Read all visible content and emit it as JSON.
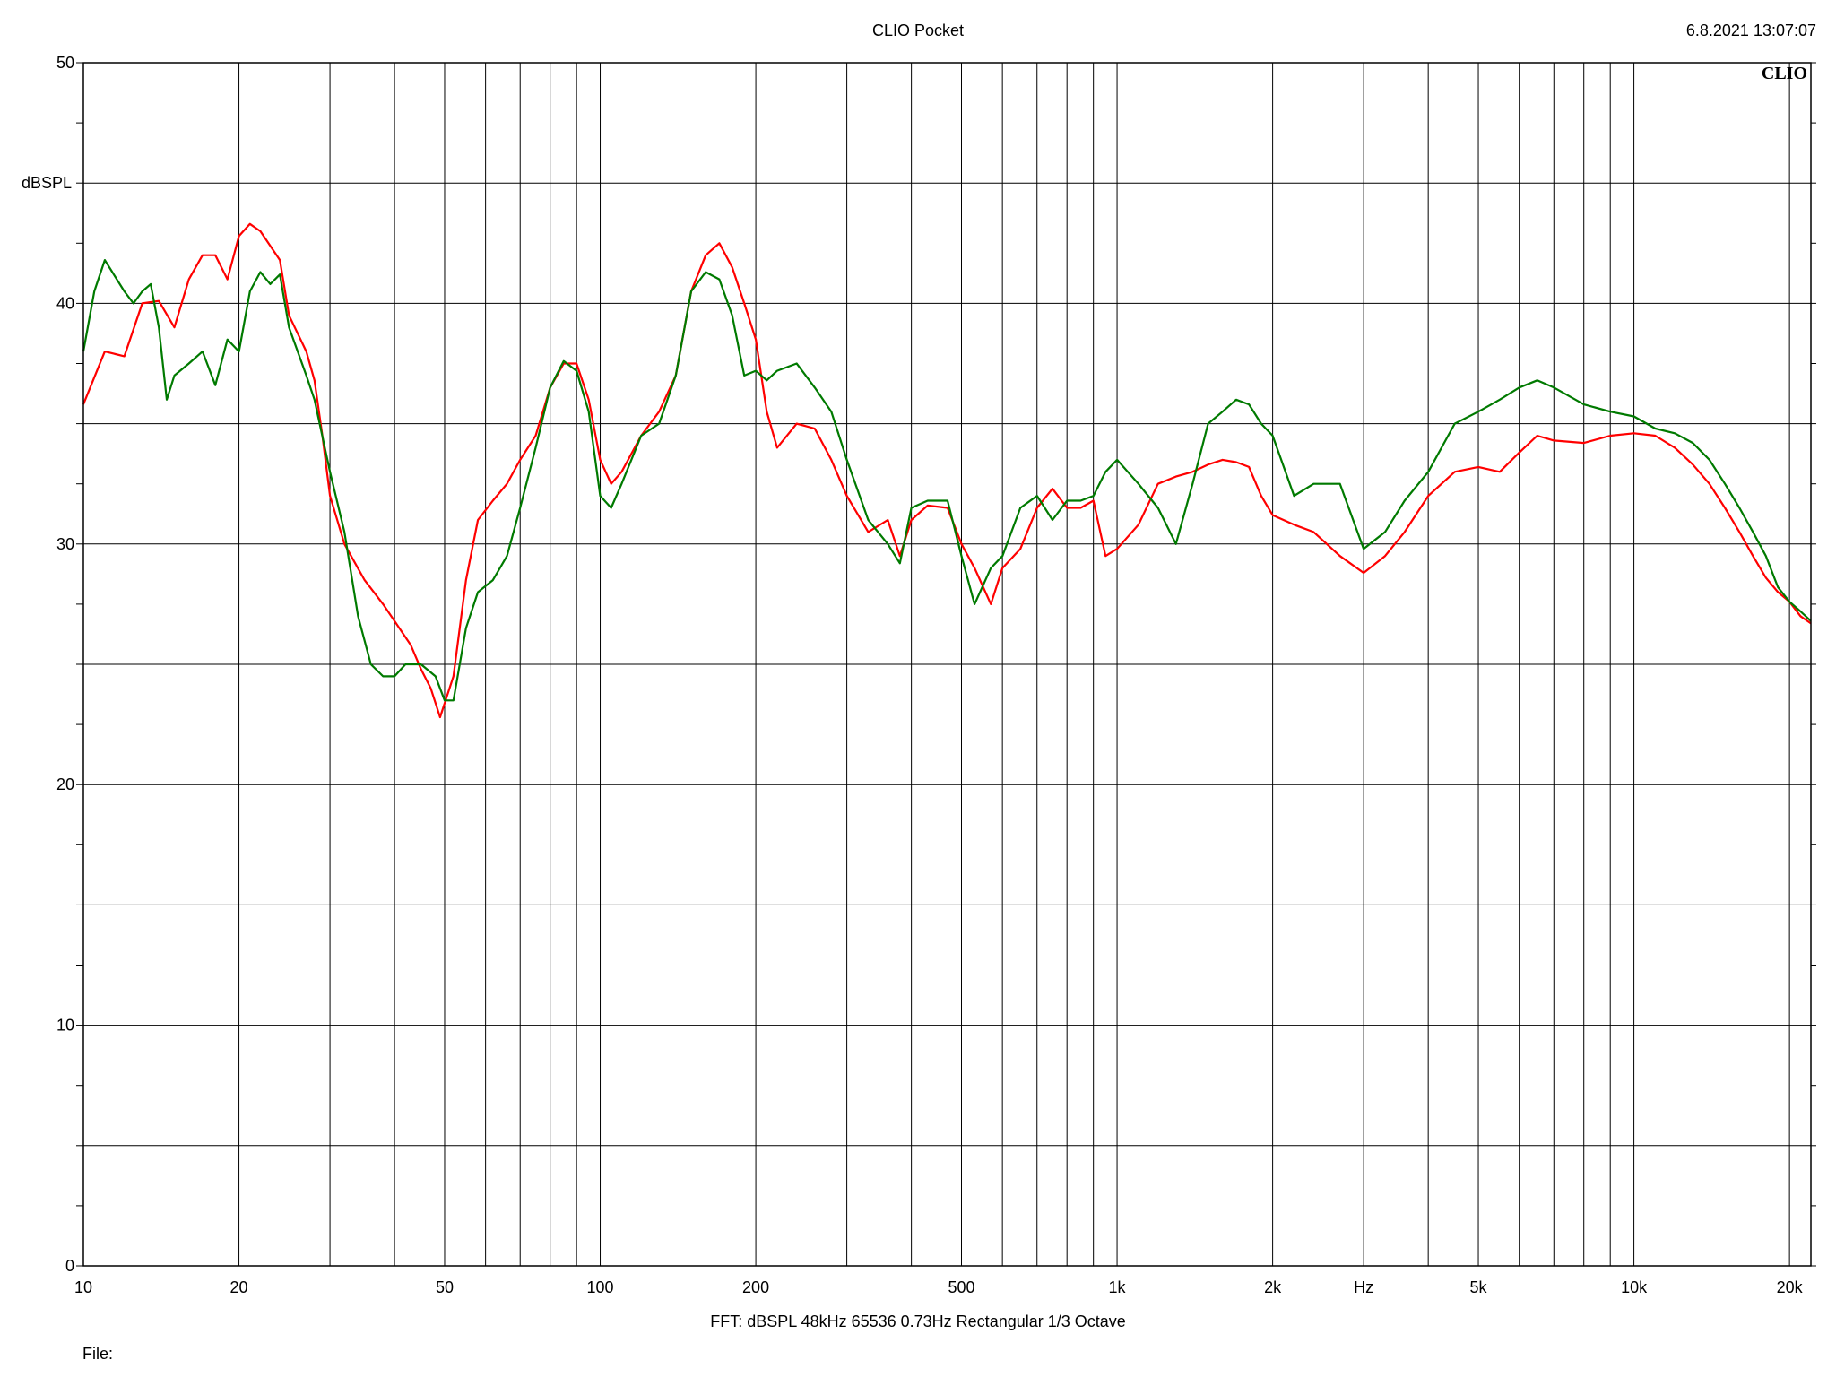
{
  "header": {
    "title": "CLIO Pocket",
    "timestamp": "6.8.2021 13:07:07"
  },
  "footer": {
    "settings": "FFT:  dBSPL  48kHz   65536  0.73Hz  Rectangular  1/3 Octave",
    "file_label": "File:"
  },
  "logo_text": "CLIO",
  "chart_data": {
    "type": "line",
    "ylabel": "dBSPL",
    "xlabel": "Hz",
    "x_scale": "log",
    "xlim": [
      10,
      22000
    ],
    "ylim": [
      0,
      50
    ],
    "grid": true,
    "y_ticks": [
      {
        "value": 0,
        "label": "0"
      },
      {
        "value": 10,
        "label": "10"
      },
      {
        "value": 20,
        "label": "20"
      },
      {
        "value": 30,
        "label": "30"
      },
      {
        "value": 40,
        "label": "40"
      },
      {
        "value": 50,
        "label": "50"
      }
    ],
    "x_ticks": [
      {
        "value": 10,
        "label": "10"
      },
      {
        "value": 20,
        "label": "20"
      },
      {
        "value": 50,
        "label": "50"
      },
      {
        "value": 100,
        "label": "100"
      },
      {
        "value": 200,
        "label": "200"
      },
      {
        "value": 500,
        "label": "500"
      },
      {
        "value": 1000,
        "label": "1k"
      },
      {
        "value": 2000,
        "label": "2k"
      },
      {
        "value": 5000,
        "label": "5k"
      },
      {
        "value": 10000,
        "label": "10k"
      },
      {
        "value": 20000,
        "label": "20k"
      }
    ],
    "series": [
      {
        "color": "#ff0000",
        "points": [
          [
            10,
            35.8
          ],
          [
            11,
            38.0
          ],
          [
            12,
            37.8
          ],
          [
            13,
            40.0
          ],
          [
            14,
            40.1
          ],
          [
            15,
            39.0
          ],
          [
            16,
            41.0
          ],
          [
            17,
            42.0
          ],
          [
            18,
            42.0
          ],
          [
            19,
            41.0
          ],
          [
            20,
            42.8
          ],
          [
            21,
            43.3
          ],
          [
            22,
            43.0
          ],
          [
            24,
            41.8
          ],
          [
            25,
            39.5
          ],
          [
            27,
            38.0
          ],
          [
            28,
            36.8
          ],
          [
            29,
            34.5
          ],
          [
            30,
            32.0
          ],
          [
            32,
            30.0
          ],
          [
            35,
            28.5
          ],
          [
            38,
            27.5
          ],
          [
            40,
            26.8
          ],
          [
            43,
            25.8
          ],
          [
            45,
            24.8
          ],
          [
            47,
            24.0
          ],
          [
            49,
            22.8
          ],
          [
            52,
            24.5
          ],
          [
            55,
            28.5
          ],
          [
            58,
            31.0
          ],
          [
            62,
            31.8
          ],
          [
            66,
            32.5
          ],
          [
            70,
            33.5
          ],
          [
            75,
            34.5
          ],
          [
            80,
            36.5
          ],
          [
            85,
            37.5
          ],
          [
            90,
            37.5
          ],
          [
            95,
            36.0
          ],
          [
            100,
            33.5
          ],
          [
            105,
            32.5
          ],
          [
            110,
            33.0
          ],
          [
            120,
            34.5
          ],
          [
            130,
            35.5
          ],
          [
            140,
            37.0
          ],
          [
            150,
            40.5
          ],
          [
            160,
            42.0
          ],
          [
            170,
            42.5
          ],
          [
            180,
            41.5
          ],
          [
            190,
            40.0
          ],
          [
            200,
            38.5
          ],
          [
            210,
            35.5
          ],
          [
            220,
            34.0
          ],
          [
            240,
            35.0
          ],
          [
            260,
            34.8
          ],
          [
            280,
            33.5
          ],
          [
            300,
            32.0
          ],
          [
            330,
            30.5
          ],
          [
            360,
            31.0
          ],
          [
            380,
            29.5
          ],
          [
            400,
            31.0
          ],
          [
            430,
            31.6
          ],
          [
            470,
            31.5
          ],
          [
            500,
            30.0
          ],
          [
            530,
            29.0
          ],
          [
            570,
            27.5
          ],
          [
            600,
            29.0
          ],
          [
            650,
            29.8
          ],
          [
            700,
            31.5
          ],
          [
            750,
            32.3
          ],
          [
            800,
            31.5
          ],
          [
            850,
            31.5
          ],
          [
            900,
            31.8
          ],
          [
            950,
            29.5
          ],
          [
            1000,
            29.8
          ],
          [
            1100,
            30.8
          ],
          [
            1200,
            32.5
          ],
          [
            1300,
            32.8
          ],
          [
            1400,
            33.0
          ],
          [
            1500,
            33.3
          ],
          [
            1600,
            33.5
          ],
          [
            1700,
            33.4
          ],
          [
            1800,
            33.2
          ],
          [
            1900,
            32.0
          ],
          [
            2000,
            31.2
          ],
          [
            2200,
            30.8
          ],
          [
            2400,
            30.5
          ],
          [
            2700,
            29.5
          ],
          [
            3000,
            28.8
          ],
          [
            3300,
            29.5
          ],
          [
            3600,
            30.5
          ],
          [
            4000,
            32.0
          ],
          [
            4500,
            33.0
          ],
          [
            5000,
            33.2
          ],
          [
            5500,
            33.0
          ],
          [
            6000,
            33.8
          ],
          [
            6500,
            34.5
          ],
          [
            7000,
            34.3
          ],
          [
            8000,
            34.2
          ],
          [
            9000,
            34.5
          ],
          [
            10000,
            34.6
          ],
          [
            11000,
            34.5
          ],
          [
            12000,
            34.0
          ],
          [
            13000,
            33.3
          ],
          [
            14000,
            32.5
          ],
          [
            15000,
            31.5
          ],
          [
            16000,
            30.5
          ],
          [
            17000,
            29.5
          ],
          [
            18000,
            28.6
          ],
          [
            19000,
            28.0
          ],
          [
            20000,
            27.6
          ],
          [
            21000,
            27.0
          ],
          [
            22000,
            26.7
          ]
        ]
      },
      {
        "color": "#007a00",
        "points": [
          [
            10,
            38.0
          ],
          [
            10.5,
            40.5
          ],
          [
            11,
            41.8
          ],
          [
            12,
            40.5
          ],
          [
            12.5,
            40.0
          ],
          [
            13,
            40.5
          ],
          [
            13.5,
            40.8
          ],
          [
            14,
            39.0
          ],
          [
            14.5,
            36.0
          ],
          [
            15,
            37.0
          ],
          [
            16,
            37.5
          ],
          [
            17,
            38.0
          ],
          [
            18,
            36.6
          ],
          [
            19,
            38.5
          ],
          [
            20,
            38.0
          ],
          [
            21,
            40.5
          ],
          [
            22,
            41.3
          ],
          [
            23,
            40.8
          ],
          [
            24,
            41.2
          ],
          [
            25,
            39.0
          ],
          [
            27,
            37.0
          ],
          [
            28,
            36.0
          ],
          [
            30,
            33.0
          ],
          [
            32,
            30.5
          ],
          [
            34,
            27.0
          ],
          [
            36,
            25.0
          ],
          [
            38,
            24.5
          ],
          [
            40,
            24.5
          ],
          [
            42,
            25.0
          ],
          [
            45,
            25.0
          ],
          [
            48,
            24.5
          ],
          [
            50,
            23.5
          ],
          [
            52,
            23.5
          ],
          [
            55,
            26.5
          ],
          [
            58,
            28.0
          ],
          [
            62,
            28.5
          ],
          [
            66,
            29.5
          ],
          [
            70,
            31.5
          ],
          [
            75,
            34.0
          ],
          [
            80,
            36.5
          ],
          [
            85,
            37.6
          ],
          [
            90,
            37.2
          ],
          [
            95,
            35.5
          ],
          [
            100,
            32.0
          ],
          [
            105,
            31.5
          ],
          [
            110,
            32.5
          ],
          [
            120,
            34.5
          ],
          [
            130,
            35.0
          ],
          [
            140,
            37.0
          ],
          [
            150,
            40.5
          ],
          [
            160,
            41.3
          ],
          [
            170,
            41.0
          ],
          [
            180,
            39.5
          ],
          [
            190,
            37.0
          ],
          [
            200,
            37.2
          ],
          [
            210,
            36.8
          ],
          [
            220,
            37.2
          ],
          [
            240,
            37.5
          ],
          [
            260,
            36.5
          ],
          [
            280,
            35.5
          ],
          [
            300,
            33.5
          ],
          [
            330,
            31.0
          ],
          [
            360,
            30.0
          ],
          [
            380,
            29.2
          ],
          [
            400,
            31.5
          ],
          [
            430,
            31.8
          ],
          [
            470,
            31.8
          ],
          [
            500,
            29.5
          ],
          [
            530,
            27.5
          ],
          [
            570,
            29.0
          ],
          [
            600,
            29.5
          ],
          [
            650,
            31.5
          ],
          [
            700,
            32.0
          ],
          [
            750,
            31.0
          ],
          [
            800,
            31.8
          ],
          [
            850,
            31.8
          ],
          [
            900,
            32.0
          ],
          [
            950,
            33.0
          ],
          [
            1000,
            33.5
          ],
          [
            1100,
            32.5
          ],
          [
            1200,
            31.5
          ],
          [
            1300,
            30.0
          ],
          [
            1400,
            32.5
          ],
          [
            1500,
            35.0
          ],
          [
            1600,
            35.5
          ],
          [
            1700,
            36.0
          ],
          [
            1800,
            35.8
          ],
          [
            1900,
            35.0
          ],
          [
            2000,
            34.5
          ],
          [
            2200,
            32.0
          ],
          [
            2400,
            32.5
          ],
          [
            2700,
            32.5
          ],
          [
            3000,
            29.8
          ],
          [
            3300,
            30.5
          ],
          [
            3600,
            31.8
          ],
          [
            4000,
            33.0
          ],
          [
            4500,
            35.0
          ],
          [
            5000,
            35.5
          ],
          [
            5500,
            36.0
          ],
          [
            6000,
            36.5
          ],
          [
            6500,
            36.8
          ],
          [
            7000,
            36.5
          ],
          [
            8000,
            35.8
          ],
          [
            9000,
            35.5
          ],
          [
            10000,
            35.3
          ],
          [
            11000,
            34.8
          ],
          [
            12000,
            34.6
          ],
          [
            13000,
            34.2
          ],
          [
            14000,
            33.5
          ],
          [
            15000,
            32.5
          ],
          [
            16000,
            31.5
          ],
          [
            17000,
            30.5
          ],
          [
            18000,
            29.5
          ],
          [
            19000,
            28.2
          ],
          [
            20000,
            27.6
          ],
          [
            21000,
            27.2
          ],
          [
            22000,
            26.8
          ]
        ]
      }
    ]
  }
}
